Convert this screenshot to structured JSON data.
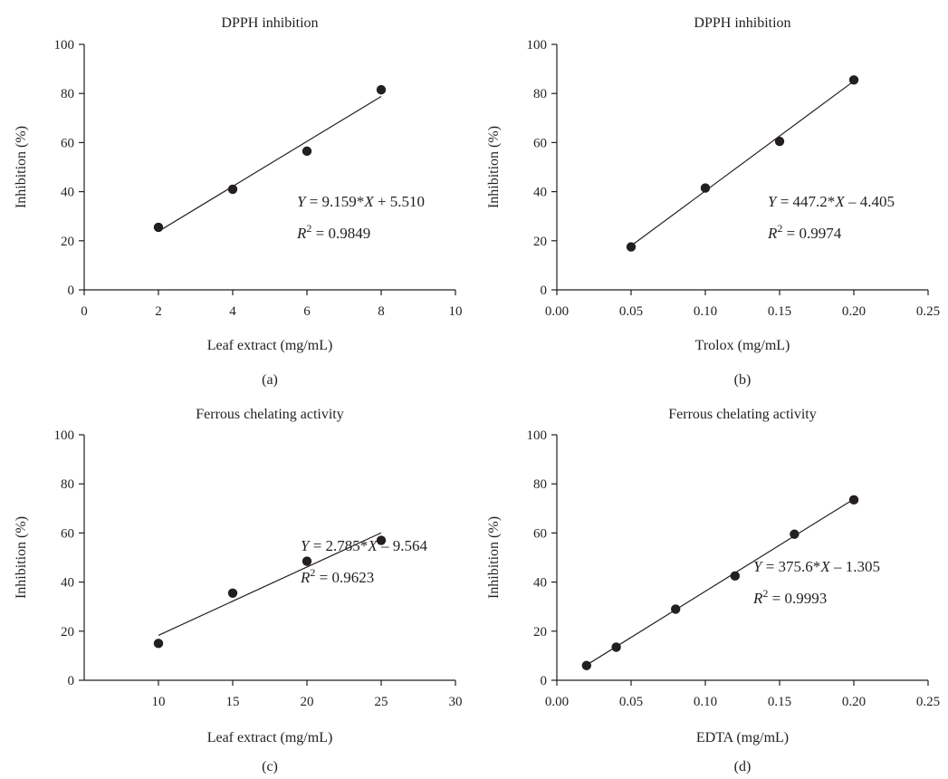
{
  "chart_data": [
    {
      "panel": "(a)",
      "type": "scatter",
      "title": "DPPH inhibition",
      "xlabel": "Leaf extract (mg/mL)",
      "ylabel": "Inhibition (%)",
      "xlim": [
        0,
        10
      ],
      "ylim": [
        0,
        100
      ],
      "x_ticks": [
        "0",
        "2",
        "4",
        "6",
        "8",
        "10"
      ],
      "y_ticks": [
        "0",
        "20",
        "40",
        "60",
        "80",
        "100"
      ],
      "x": [
        2,
        4,
        6,
        8
      ],
      "y": [
        25.5,
        41,
        56.5,
        81.5
      ],
      "fit": {
        "slope": 9.159,
        "intercept": 5.51,
        "x_range": [
          2,
          8
        ]
      },
      "equation": {
        "lhs": "Y",
        "rhs": " = 9.159*",
        "var": "X",
        "tail": " + 5.510"
      },
      "r2": {
        "lhs": "R",
        "sup": "2",
        "tail": " = 0.9849"
      },
      "grid": false
    },
    {
      "panel": "(b)",
      "type": "scatter",
      "title": "DPPH inhibition",
      "xlabel": "Trolox (mg/mL)",
      "ylabel": "Inhibition (%)",
      "xlim": [
        0,
        0.25
      ],
      "ylim": [
        0,
        100
      ],
      "x_ticks": [
        "0.00",
        "0.05",
        "0.10",
        "0.15",
        "0.20",
        "0.25"
      ],
      "y_ticks": [
        "0",
        "20",
        "40",
        "60",
        "80",
        "100"
      ],
      "x": [
        0.05,
        0.1,
        0.15,
        0.2
      ],
      "y": [
        17.5,
        41.5,
        60.5,
        85.5
      ],
      "fit": {
        "slope": 447.2,
        "intercept": -4.405,
        "x_range": [
          0.05,
          0.2
        ]
      },
      "equation": {
        "lhs": "Y",
        "rhs": " = 447.2*",
        "var": "X",
        "tail": " – 4.405"
      },
      "r2": {
        "lhs": "R",
        "sup": "2",
        "tail": " = 0.9974"
      },
      "grid": false
    },
    {
      "panel": "(c)",
      "type": "scatter",
      "title": "Ferrous chelating activity",
      "xlabel": "Leaf extract (mg/mL)",
      "ylabel": "Inhibition (%)",
      "xlim": [
        5,
        30
      ],
      "ylim": [
        0,
        100
      ],
      "x_ticks": [
        "10",
        "15",
        "20",
        "25",
        "30"
      ],
      "y_ticks": [
        "0",
        "20",
        "40",
        "60",
        "80",
        "100"
      ],
      "x": [
        10,
        15,
        20,
        25
      ],
      "y": [
        15,
        35.5,
        48.5,
        57
      ],
      "fit": {
        "slope": 2.785,
        "intercept": -9.564,
        "x_range": [
          10,
          25
        ]
      },
      "equation": {
        "lhs": "Y",
        "rhs": " = 2.785*",
        "var": "X",
        "tail": " – 9.564"
      },
      "r2": {
        "lhs": "R",
        "sup": "2",
        "tail": " = 0.9623"
      },
      "grid": false
    },
    {
      "panel": "(d)",
      "type": "scatter",
      "title": "Ferrous chelating activity",
      "xlabel": "EDTA (mg/mL)",
      "ylabel": "Inhibition (%)",
      "xlim": [
        0,
        0.25
      ],
      "ylim": [
        0,
        100
      ],
      "x_ticks": [
        "0.00",
        "0.05",
        "0.10",
        "0.15",
        "0.20",
        "0.25"
      ],
      "y_ticks": [
        "0",
        "20",
        "40",
        "60",
        "80",
        "100"
      ],
      "x": [
        0.02,
        0.04,
        0.08,
        0.12,
        0.16,
        0.2
      ],
      "y": [
        6,
        13.5,
        29,
        42.5,
        59.5,
        73.5
      ],
      "fit": {
        "slope": 375.6,
        "intercept": -1.305,
        "x_range": [
          0.02,
          0.2
        ]
      },
      "equation": {
        "lhs": "Y",
        "rhs": " = 375.6*",
        "var": "X",
        "tail": " – 1.305"
      },
      "r2": {
        "lhs": "R",
        "sup": "2",
        "tail": " = 0.9993"
      },
      "grid": false
    }
  ]
}
